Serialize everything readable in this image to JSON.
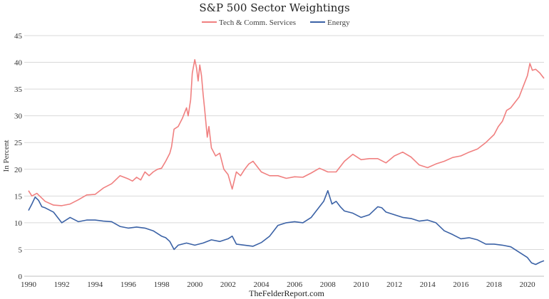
{
  "chart_data": {
    "type": "line",
    "title": "S&P 500 Sector Weightings",
    "ylabel": "In Percent",
    "source": "TheFelderReport.com",
    "ylim": [
      0,
      45
    ],
    "yticks": [
      "0",
      "5",
      "10",
      "15",
      "20",
      "25",
      "30",
      "35",
      "40",
      "45"
    ],
    "xlim": [
      1990,
      2021
    ],
    "xticks": [
      "1990",
      "1992",
      "1994",
      "1996",
      "1998",
      "2000",
      "2002",
      "2004",
      "2006",
      "2008",
      "2010",
      "2012",
      "2014",
      "2016",
      "2018",
      "2020"
    ],
    "grid": "horizontal",
    "legend_position": "top-center",
    "series": [
      {
        "name": "Tech & Comm. Services",
        "color": "#F08080",
        "x": [
          1990,
          1990.2,
          1990.5,
          1991,
          1991.5,
          1992,
          1992.5,
          1993,
          1993.5,
          1994,
          1994.5,
          1995,
          1995.5,
          1996,
          1996.25,
          1996.5,
          1996.75,
          1997,
          1997.25,
          1997.5,
          1997.75,
          1998,
          1998.25,
          1998.5,
          1998.6,
          1998.75,
          1999,
          1999.25,
          1999.5,
          1999.6,
          1999.75,
          1999.85,
          2000,
          2000.1,
          2000.2,
          2000.3,
          2000.4,
          2000.5,
          2000.6,
          2000.75,
          2000.85,
          2001,
          2001.25,
          2001.5,
          2001.75,
          2002,
          2002.25,
          2002.5,
          2002.75,
          2003,
          2003.25,
          2003.5,
          2003.75,
          2004,
          2004.5,
          2005,
          2005.5,
          2006,
          2006.5,
          2007,
          2007.5,
          2008,
          2008.5,
          2009,
          2009.5,
          2010,
          2010.5,
          2011,
          2011.5,
          2012,
          2012.5,
          2013,
          2013.5,
          2014,
          2014.5,
          2015,
          2015.5,
          2016,
          2016.5,
          2017,
          2017.5,
          2018,
          2018.25,
          2018.5,
          2018.75,
          2019,
          2019.25,
          2019.5,
          2019.75,
          2020,
          2020.15,
          2020.3,
          2020.5,
          2020.75,
          2021
        ],
        "values": [
          16,
          15,
          15.5,
          14,
          13.3,
          13.2,
          13.5,
          14.3,
          15.2,
          15.3,
          16.5,
          17.3,
          18.8,
          18.2,
          17.8,
          18.5,
          18,
          19.5,
          18.8,
          19.5,
          20,
          20.2,
          21.5,
          23,
          24.2,
          27.5,
          28,
          29.5,
          31.5,
          30,
          33,
          38,
          40.5,
          39,
          36.5,
          39.5,
          37.5,
          34,
          31,
          26,
          28,
          24,
          22.5,
          23,
          20,
          19,
          16.3,
          19.5,
          18.8,
          20,
          21,
          21.5,
          20.5,
          19.5,
          18.8,
          18.8,
          18.3,
          18.6,
          18.5,
          19.3,
          20.2,
          19.5,
          19.5,
          21.5,
          22.8,
          21.8,
          22,
          22,
          21.2,
          22.5,
          23.2,
          22.3,
          20.8,
          20.3,
          21,
          21.5,
          22.2,
          22.5,
          23.2,
          23.8,
          25,
          26.5,
          28,
          29,
          31,
          31.5,
          32.5,
          33.5,
          35.5,
          37.5,
          39.8,
          38.5,
          38.7,
          38,
          37
        ]
      },
      {
        "name": "Energy",
        "color": "#3B62A6",
        "x": [
          1990,
          1990.2,
          1990.4,
          1990.6,
          1990.8,
          1991,
          1991.5,
          1992,
          1992.5,
          1993,
          1993.5,
          1994,
          1994.5,
          1995,
          1995.5,
          1996,
          1996.5,
          1997,
          1997.5,
          1998,
          1998.25,
          1998.5,
          1998.75,
          1999,
          1999.5,
          2000,
          2000.5,
          2001,
          2001.5,
          2002,
          2002.25,
          2002.5,
          2003,
          2003.5,
          2004,
          2004.5,
          2005,
          2005.5,
          2006,
          2006.5,
          2007,
          2007.5,
          2007.75,
          2008,
          2008.25,
          2008.5,
          2008.75,
          2009,
          2009.5,
          2010,
          2010.5,
          2011,
          2011.25,
          2011.5,
          2012,
          2012.5,
          2013,
          2013.5,
          2014,
          2014.5,
          2015,
          2015.5,
          2016,
          2016.5,
          2017,
          2017.5,
          2018,
          2018.5,
          2019,
          2019.5,
          2020,
          2020.25,
          2020.5,
          2020.75,
          2021
        ],
        "values": [
          12.3,
          13.5,
          14.8,
          14.2,
          13,
          12.8,
          12,
          10,
          11,
          10.2,
          10.5,
          10.5,
          10.3,
          10.2,
          9.3,
          9,
          9.2,
          9,
          8.5,
          7.5,
          7.2,
          6.5,
          5,
          5.8,
          6.2,
          5.8,
          6.2,
          6.8,
          6.5,
          7,
          7.5,
          6,
          5.8,
          5.6,
          6.3,
          7.5,
          9.5,
          10,
          10.2,
          10,
          11,
          13,
          14,
          16,
          13.5,
          14,
          13,
          12.2,
          11.8,
          11,
          11.5,
          13,
          12.8,
          12,
          11.5,
          11,
          10.8,
          10.3,
          10.5,
          10,
          8.5,
          7.8,
          7,
          7.2,
          6.8,
          6,
          6,
          5.8,
          5.5,
          4.5,
          3.5,
          2.5,
          2.2,
          2.6,
          2.9
        ]
      }
    ]
  }
}
